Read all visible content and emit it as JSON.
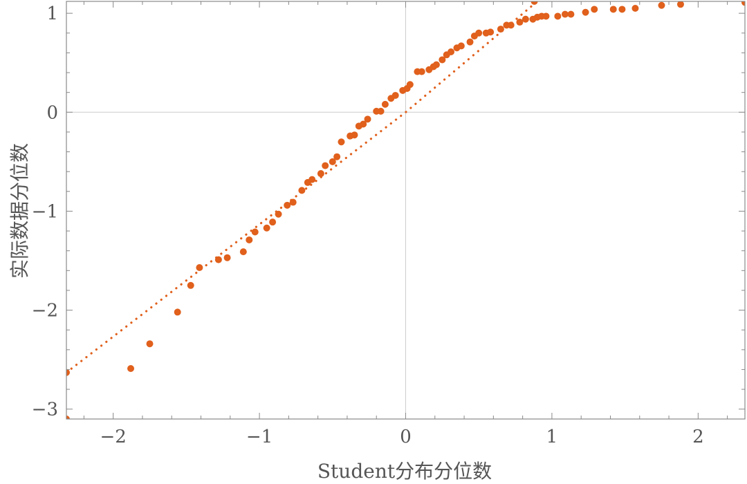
{
  "chart_data": {
    "type": "scatter",
    "xlabel": "Student分布分位数",
    "ylabel": "实际数据分位数",
    "xlim": [
      -2.32,
      2.32
    ],
    "ylim": [
      -3.1,
      1.12
    ],
    "x_ticks": [
      -2,
      -1,
      0,
      1,
      2
    ],
    "y_ticks": [
      -3,
      -2,
      -1,
      0,
      1
    ],
    "x_tick_labels": [
      "−2",
      "−1",
      "0",
      "1",
      "2"
    ],
    "y_tick_labels": [
      "−3",
      "−2",
      "−1",
      "0",
      "1"
    ],
    "grid": false,
    "zero_lines": true,
    "frame": true,
    "legend": "none",
    "colors": {
      "points": "#e0601c",
      "reference_line": "#e0601c",
      "frame": "#888888",
      "zero_lines": "#cccccc",
      "text": "#555555"
    },
    "reference_line": {
      "style": "dotted",
      "points": [
        [
          -2.32,
          -2.63
        ],
        [
          0.0,
          0.0
        ],
        [
          0.9,
          1.12
        ]
      ]
    },
    "series": [
      {
        "points": [
          [
            -2.32,
            -3.1
          ],
          [
            -2.32,
            -2.63
          ],
          [
            -1.88,
            -2.59
          ],
          [
            -1.75,
            -2.34
          ],
          [
            -1.56,
            -2.02
          ],
          [
            -1.47,
            -1.75
          ],
          [
            -1.41,
            -1.57
          ],
          [
            -1.28,
            -1.49
          ],
          [
            -1.22,
            -1.47
          ],
          [
            -1.11,
            -1.41
          ],
          [
            -1.07,
            -1.29
          ],
          [
            -1.03,
            -1.21
          ],
          [
            -0.95,
            -1.17
          ],
          [
            -0.91,
            -1.11
          ],
          [
            -0.87,
            -1.03
          ],
          [
            -0.81,
            -0.94
          ],
          [
            -0.77,
            -0.91
          ],
          [
            -0.71,
            -0.79
          ],
          [
            -0.67,
            -0.71
          ],
          [
            -0.64,
            -0.68
          ],
          [
            -0.58,
            -0.62
          ],
          [
            -0.55,
            -0.54
          ],
          [
            -0.5,
            -0.5
          ],
          [
            -0.47,
            -0.45
          ],
          [
            -0.44,
            -0.3
          ],
          [
            -0.38,
            -0.24
          ],
          [
            -0.35,
            -0.23
          ],
          [
            -0.32,
            -0.14
          ],
          [
            -0.29,
            -0.12
          ],
          [
            -0.26,
            -0.07
          ],
          [
            -0.2,
            0.01
          ],
          [
            -0.17,
            0.01
          ],
          [
            -0.14,
            0.08
          ],
          [
            -0.1,
            0.14
          ],
          [
            -0.07,
            0.17
          ],
          [
            -0.02,
            0.22
          ],
          [
            0.01,
            0.24
          ],
          [
            0.03,
            0.28
          ],
          [
            0.08,
            0.41
          ],
          [
            0.11,
            0.41
          ],
          [
            0.16,
            0.43
          ],
          [
            0.19,
            0.46
          ],
          [
            0.21,
            0.48
          ],
          [
            0.25,
            0.53
          ],
          [
            0.28,
            0.58
          ],
          [
            0.31,
            0.61
          ],
          [
            0.35,
            0.65
          ],
          [
            0.38,
            0.67
          ],
          [
            0.44,
            0.71
          ],
          [
            0.47,
            0.77
          ],
          [
            0.5,
            0.8
          ],
          [
            0.55,
            0.8
          ],
          [
            0.58,
            0.81
          ],
          [
            0.65,
            0.84
          ],
          [
            0.69,
            0.88
          ],
          [
            0.72,
            0.88
          ],
          [
            0.78,
            0.91
          ],
          [
            0.82,
            0.94
          ],
          [
            0.87,
            0.94
          ],
          [
            0.9,
            0.96
          ],
          [
            0.93,
            0.97
          ],
          [
            0.96,
            0.97
          ],
          [
            1.04,
            0.97
          ],
          [
            1.09,
            0.99
          ],
          [
            1.13,
            0.99
          ],
          [
            1.23,
            1.01
          ],
          [
            1.29,
            1.04
          ],
          [
            1.42,
            1.04
          ],
          [
            1.48,
            1.04
          ],
          [
            1.57,
            1.05
          ],
          [
            1.75,
            1.08
          ],
          [
            1.88,
            1.09
          ],
          [
            2.32,
            1.11
          ],
          [
            0.88,
            1.12
          ]
        ]
      }
    ]
  }
}
